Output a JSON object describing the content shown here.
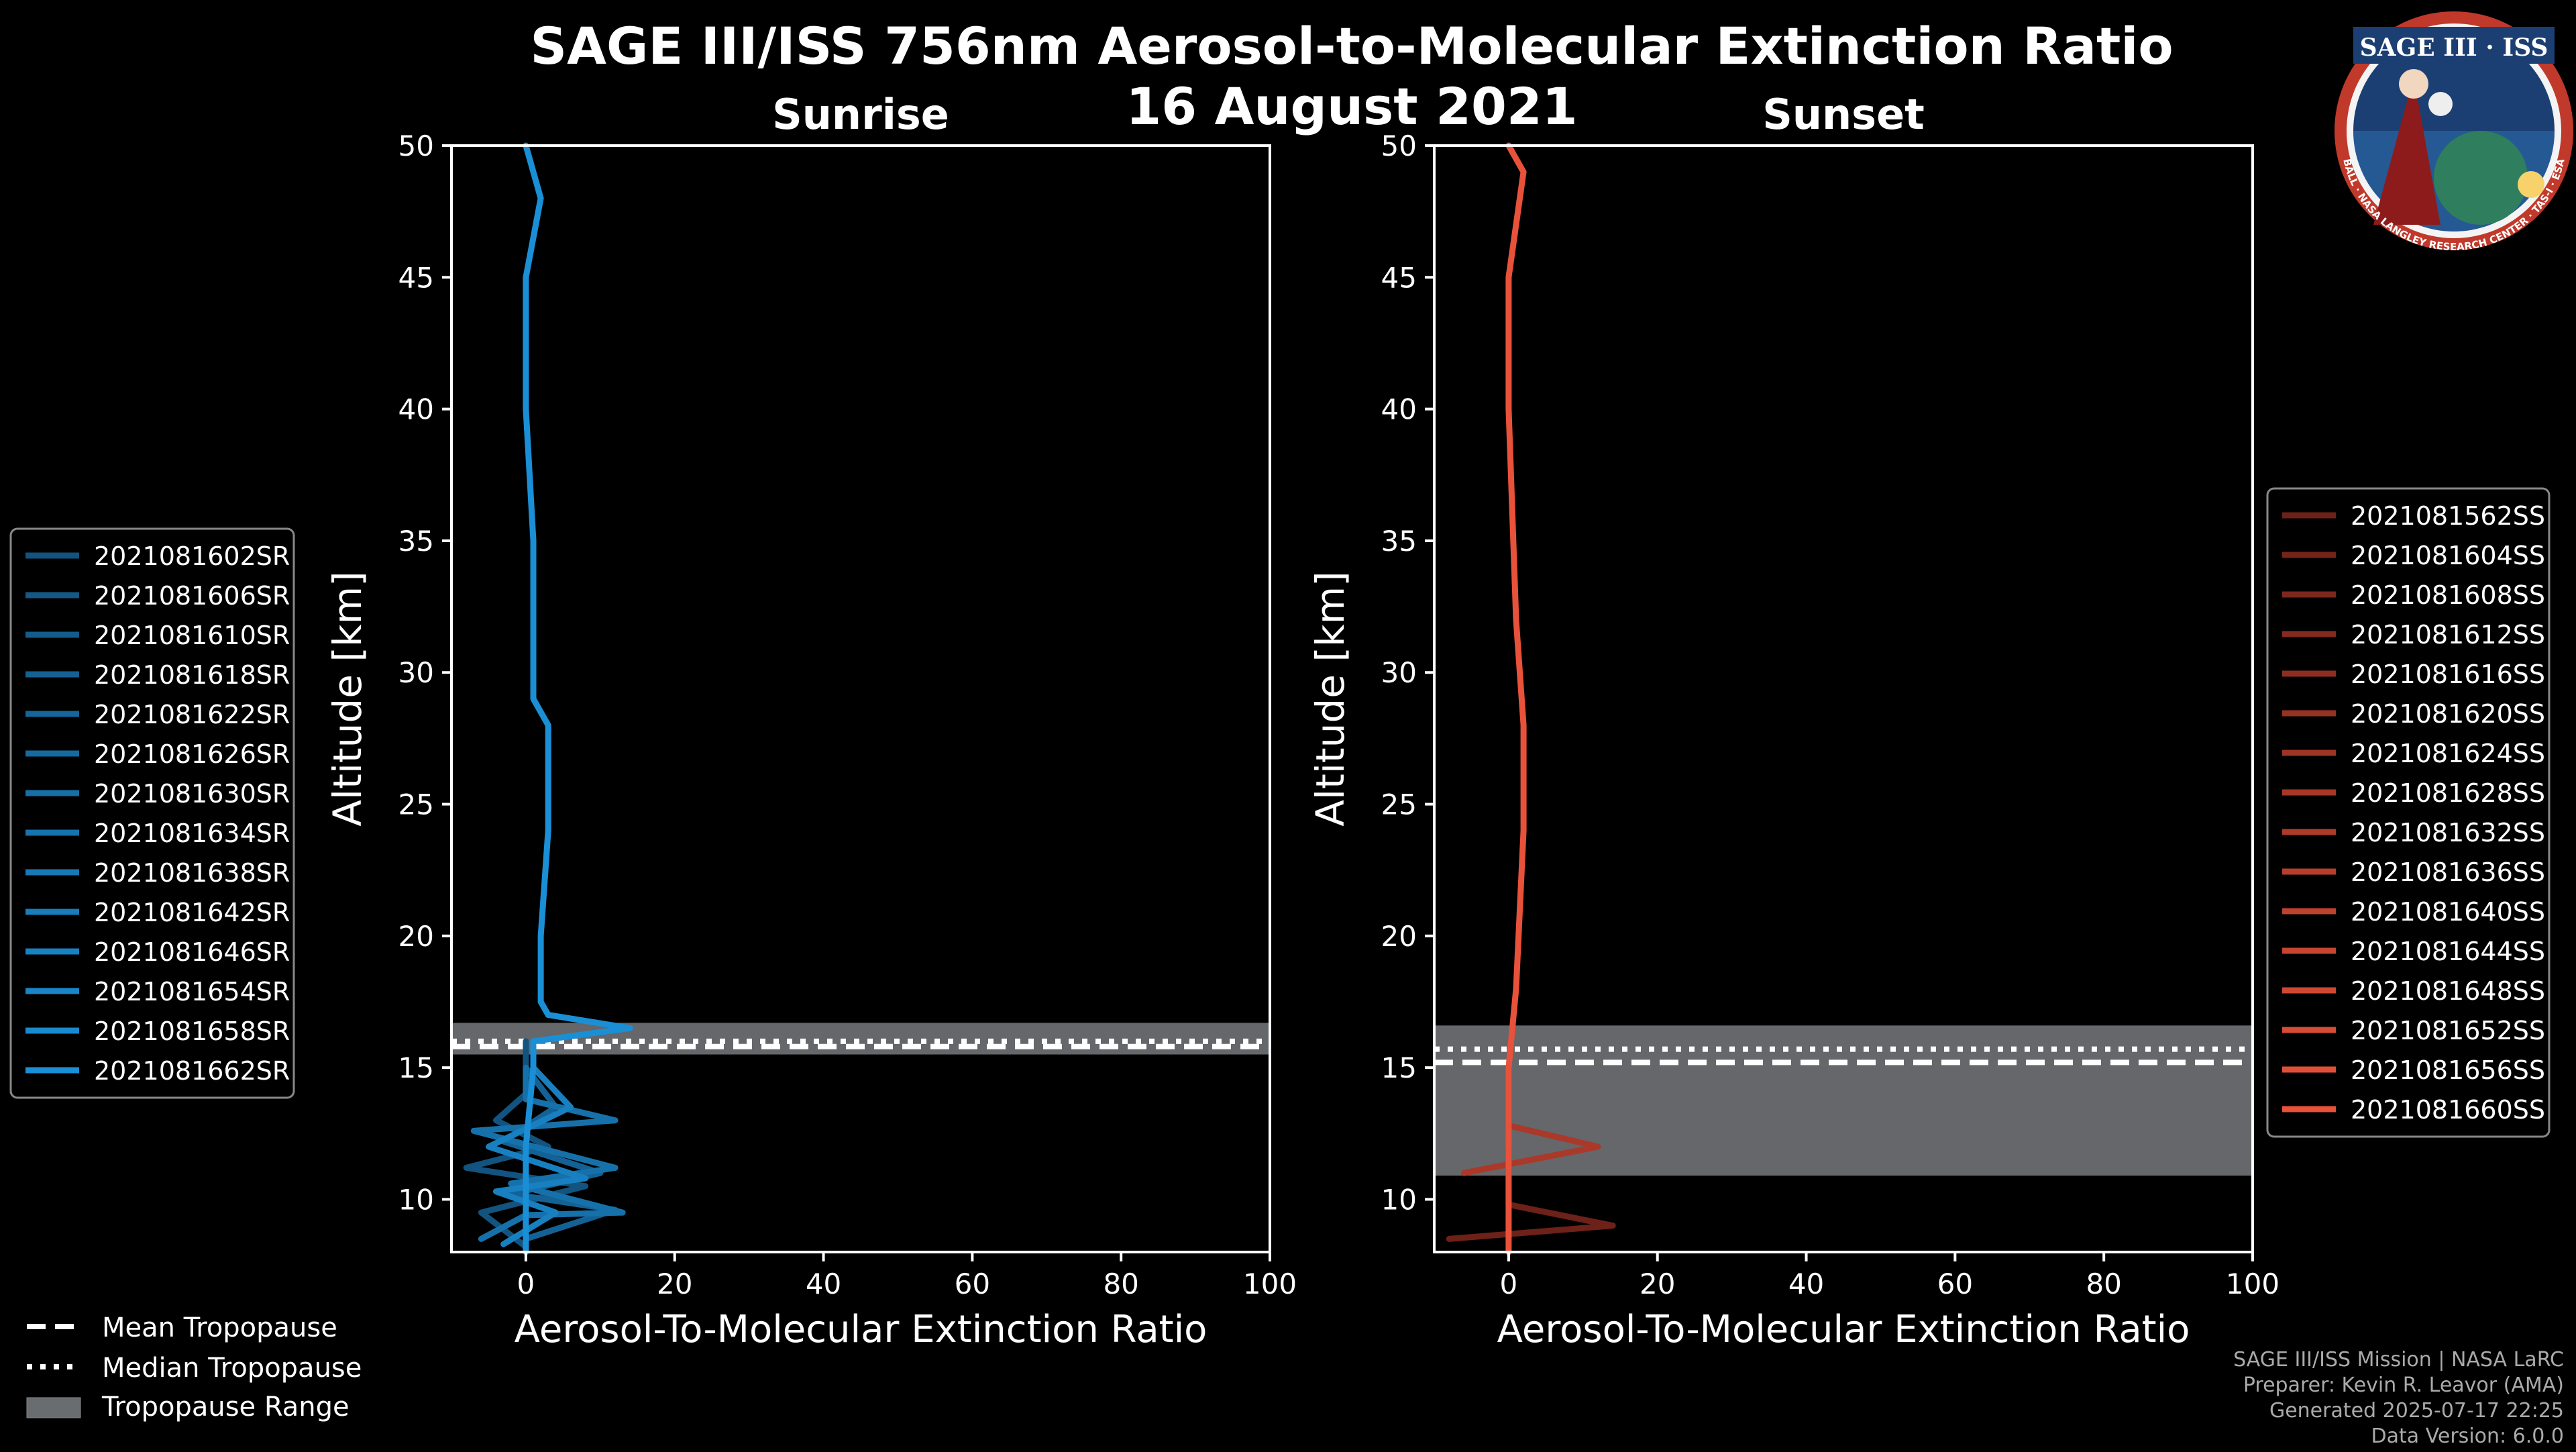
{
  "title_line1": "SAGE III/ISS 756nm Aerosol-to-Molecular Extinction Ratio",
  "title_line2": "16 August 2021",
  "logo": {
    "name": "SAGE III · ISS",
    "ring_text": "BALL · NASA LANGLEY RESEARCH CENTER · TAS-I · ESA"
  },
  "footer": [
    "SAGE III/ISS Mission | NASA LaRC",
    "Preparer: Kevin R. Leavor (AMA)",
    "Generated 2025-07-17 22:25",
    "Data Version: 6.0.0"
  ],
  "tropopause_legend": [
    "Mean Tropopause",
    "Median Tropopause",
    "Tropopause Range"
  ],
  "chart_data": [
    {
      "type": "line",
      "title": "Sunrise",
      "xlabel": "Aerosol-To-Molecular Extinction Ratio",
      "ylabel": "Altitude [km]",
      "xlim": [
        -10,
        100
      ],
      "ylim": [
        8,
        50
      ],
      "xticks": [
        0,
        20,
        40,
        60,
        80,
        100
      ],
      "yticks": [
        10,
        15,
        20,
        25,
        30,
        35,
        40,
        45,
        50
      ],
      "tropopause": {
        "mean": 15.8,
        "median": 16.0,
        "range": [
          15.5,
          16.7
        ]
      },
      "color_light": "#1a8fd6",
      "color_dark": "#0e3350",
      "legend": [
        "2021081602SR",
        "2021081606SR",
        "2021081610SR",
        "2021081618SR",
        "2021081622SR",
        "2021081626SR",
        "2021081630SR",
        "2021081634SR",
        "2021081638SR",
        "2021081642SR",
        "2021081646SR",
        "2021081654SR",
        "2021081658SR",
        "2021081662SR"
      ],
      "series": [
        {
          "name": "2021081602SR",
          "points": [
            [
              0,
              8.2
            ],
            [
              -6,
              9.5
            ],
            [
              8,
              10.5
            ],
            [
              -8,
              11.2
            ],
            [
              3,
              12
            ],
            [
              -4,
              13
            ],
            [
              0,
              14
            ],
            [
              0,
              15
            ],
            [
              0,
              16
            ]
          ]
        },
        {
          "name": "2021081610SR",
          "points": [
            [
              0,
              8.5
            ],
            [
              12,
              9.6
            ],
            [
              -2,
              10.2
            ],
            [
              10,
              11
            ],
            [
              -3,
              12.2
            ],
            [
              4,
              13.5
            ],
            [
              0,
              15
            ]
          ]
        },
        {
          "name": "2021081618SR",
          "points": [
            [
              -6,
              8.5
            ],
            [
              0,
              9.4
            ],
            [
              13,
              9.5
            ],
            [
              -2,
              10.6
            ],
            [
              12,
              11.2
            ],
            [
              -7,
              12.6
            ],
            [
              12,
              13
            ],
            [
              0,
              13.8
            ],
            [
              0,
              15
            ]
          ]
        },
        {
          "name": "2021081626SR",
          "points": [
            [
              -3,
              8.3
            ],
            [
              4,
              9.5
            ],
            [
              -4,
              10.3
            ],
            [
              8,
              10.8
            ],
            [
              -5,
              12
            ],
            [
              6,
              13.5
            ],
            [
              1,
              15
            ]
          ]
        },
        {
          "name": "2021081662SR",
          "points": [
            [
              0,
              8
            ],
            [
              0,
              12
            ],
            [
              1,
              15
            ],
            [
              1,
              16
            ],
            [
              14,
              16.5
            ],
            [
              3,
              17
            ],
            [
              2,
              17.5
            ],
            [
              2,
              20
            ],
            [
              3,
              24
            ],
            [
              3,
              27
            ],
            [
              3,
              28
            ],
            [
              1,
              29
            ],
            [
              1,
              35
            ],
            [
              0,
              40
            ],
            [
              0,
              45
            ],
            [
              2,
              48
            ],
            [
              0,
              50
            ]
          ]
        }
      ]
    },
    {
      "type": "line",
      "title": "Sunset",
      "xlabel": "Aerosol-To-Molecular Extinction Ratio",
      "ylabel": "Altitude [km]",
      "xlim": [
        -10,
        100
      ],
      "ylim": [
        8,
        50
      ],
      "xticks": [
        0,
        20,
        40,
        60,
        80,
        100
      ],
      "yticks": [
        10,
        15,
        20,
        25,
        30,
        35,
        40,
        45,
        50
      ],
      "tropopause": {
        "mean": 15.2,
        "median": 15.7,
        "range": [
          10.9,
          16.6
        ]
      },
      "color_light": "#e8523a",
      "color_dark": "#2a0606",
      "legend": [
        "2021081562SS",
        "2021081604SS",
        "2021081608SS",
        "2021081612SS",
        "2021081616SS",
        "2021081620SS",
        "2021081624SS",
        "2021081628SS",
        "2021081632SS",
        "2021081636SS",
        "2021081640SS",
        "2021081644SS",
        "2021081648SS",
        "2021081652SS",
        "2021081656SS",
        "2021081660SS"
      ],
      "series": [
        {
          "name": "2021081562SS",
          "points": [
            [
              -8,
              8.5
            ],
            [
              14,
              9
            ],
            [
              0,
              9.8
            ],
            [
              0,
              12
            ]
          ]
        },
        {
          "name": "2021081604SS",
          "points": [
            [
              -6,
              11
            ],
            [
              12,
              12
            ],
            [
              0,
              12.8
            ],
            [
              0,
              15
            ]
          ]
        },
        {
          "name": "2021081660SS",
          "points": [
            [
              0,
              8
            ],
            [
              0,
              15
            ],
            [
              1,
              18
            ],
            [
              2,
              24
            ],
            [
              2,
              28
            ],
            [
              1,
              32
            ],
            [
              0,
              40
            ],
            [
              0,
              45
            ],
            [
              2,
              49
            ],
            [
              0,
              50
            ]
          ]
        }
      ]
    }
  ]
}
